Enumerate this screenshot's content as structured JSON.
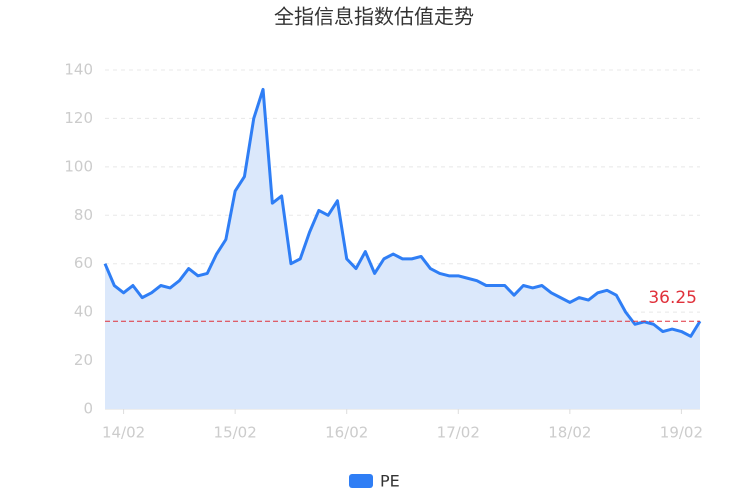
{
  "chart_data": {
    "type": "line",
    "title": "全指信息指数估值走势",
    "categories": [
      null,
      null,
      "14/02",
      null,
      null,
      null,
      null,
      null,
      null,
      null,
      null,
      null,
      null,
      null,
      "15/02",
      null,
      null,
      null,
      null,
      null,
      null,
      null,
      null,
      null,
      null,
      null,
      "16/02",
      null,
      null,
      null,
      null,
      null,
      null,
      null,
      null,
      null,
      null,
      null,
      "17/02",
      null,
      null,
      null,
      null,
      null,
      null,
      null,
      null,
      null,
      null,
      null,
      "18/02",
      null,
      null,
      null,
      null,
      null,
      null,
      null,
      null,
      null,
      null,
      null,
      "19/02",
      null,
      null
    ],
    "series": [
      {
        "name": "PE",
        "color": "#2f7ef5",
        "area_color": "#dbe8fb",
        "values": [
          60,
          51,
          48,
          51,
          46,
          48,
          51,
          50,
          53,
          58,
          55,
          56,
          64,
          70,
          90,
          96,
          120,
          132,
          85,
          88,
          60,
          62,
          73,
          82,
          80,
          86,
          62,
          58,
          65,
          56,
          62,
          64,
          62,
          62,
          63,
          58,
          56,
          55,
          55,
          54,
          53,
          51,
          51,
          51,
          47,
          51,
          50,
          51,
          48,
          46,
          44,
          46,
          45,
          48,
          49,
          47,
          40,
          35,
          36,
          35,
          32,
          33,
          32,
          30,
          36.25
        ]
      }
    ],
    "reference_line": 36.25,
    "reference_color": "#e0313b",
    "ylim": [
      0,
      140
    ],
    "yticks": [
      0,
      20,
      40,
      60,
      80,
      100,
      120,
      140
    ],
    "grid": true,
    "legend": "bottom"
  }
}
